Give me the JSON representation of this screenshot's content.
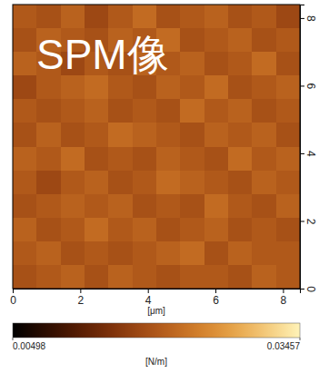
{
  "chart_data": {
    "type": "heatmap",
    "title": "SPM像",
    "x_label": "[μm]",
    "xlim": [
      0,
      8.5
    ],
    "xticks": [
      0,
      2,
      4,
      6,
      8
    ],
    "ylim": [
      0,
      8.4
    ],
    "yticks": [
      0,
      2,
      4,
      6,
      8
    ],
    "cells": [
      [
        0.02,
        0.019,
        0.021,
        0.018,
        0.02,
        0.022,
        0.019,
        0.02,
        0.021,
        0.019,
        0.02,
        0.018
      ],
      [
        0.019,
        0.021,
        0.02,
        0.019,
        0.021,
        0.02,
        0.022,
        0.019,
        0.02,
        0.021,
        0.019,
        0.02
      ],
      [
        0.021,
        0.02,
        0.018,
        0.02,
        0.019,
        0.021,
        0.02,
        0.021,
        0.019,
        0.02,
        0.022,
        0.019
      ],
      [
        0.018,
        0.02,
        0.021,
        0.022,
        0.02,
        0.019,
        0.021,
        0.02,
        0.022,
        0.019,
        0.02,
        0.021
      ],
      [
        0.02,
        0.019,
        0.02,
        0.021,
        0.019,
        0.02,
        0.019,
        0.022,
        0.02,
        0.021,
        0.019,
        0.02
      ],
      [
        0.019,
        0.021,
        0.019,
        0.02,
        0.022,
        0.021,
        0.02,
        0.019,
        0.021,
        0.02,
        0.021,
        0.019
      ],
      [
        0.021,
        0.02,
        0.022,
        0.019,
        0.02,
        0.019,
        0.021,
        0.02,
        0.019,
        0.022,
        0.02,
        0.021
      ],
      [
        0.02,
        0.018,
        0.02,
        0.021,
        0.019,
        0.02,
        0.022,
        0.021,
        0.02,
        0.019,
        0.021,
        0.02
      ],
      [
        0.019,
        0.02,
        0.021,
        0.02,
        0.021,
        0.019,
        0.02,
        0.019,
        0.022,
        0.02,
        0.019,
        0.021
      ],
      [
        0.021,
        0.019,
        0.02,
        0.022,
        0.02,
        0.021,
        0.019,
        0.02,
        0.021,
        0.019,
        0.02,
        0.019
      ],
      [
        0.02,
        0.021,
        0.019,
        0.02,
        0.019,
        0.02,
        0.021,
        0.022,
        0.019,
        0.021,
        0.02,
        0.02
      ],
      [
        0.019,
        0.02,
        0.021,
        0.019,
        0.021,
        0.02,
        0.019,
        0.02,
        0.02,
        0.019,
        0.021,
        0.02
      ]
    ],
    "colorbar": {
      "label": "[N/m]",
      "range": [
        0.00498,
        0.03457
      ],
      "ticks": [
        0.00498,
        0.03457
      ]
    }
  }
}
